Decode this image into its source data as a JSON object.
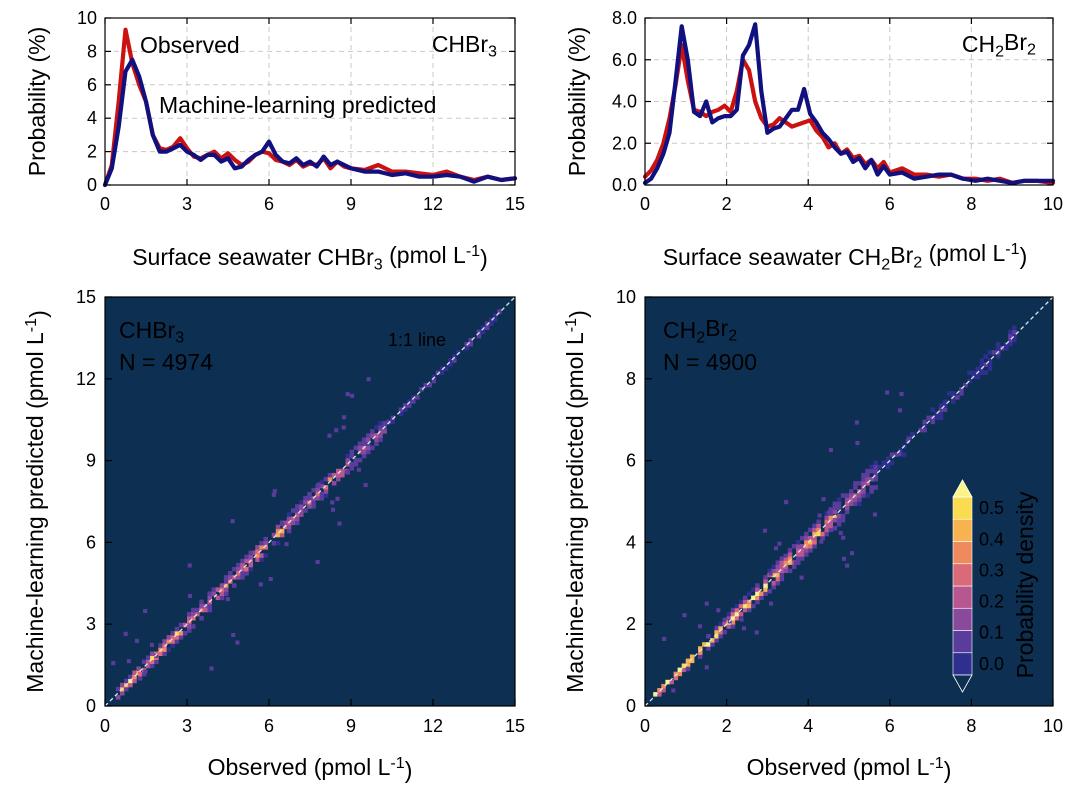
{
  "chart_data": [
    {
      "type": "line",
      "title": "CHBr",
      "title_subscript": "3",
      "xlabel_parts": [
        "Surface seawater CHBr",
        "3",
        " (pmol L",
        "-1",
        ")"
      ],
      "ylabel": "Probability (%)",
      "xlim": [
        0,
        15
      ],
      "ylim": [
        0,
        10
      ],
      "xticks": [
        0,
        3,
        6,
        9,
        12,
        15
      ],
      "yticks": [
        0,
        2,
        4,
        6,
        8,
        10
      ],
      "ytick_labels": [
        "0",
        "2",
        "4",
        "6",
        "8",
        "10"
      ],
      "grid": true,
      "series": [
        {
          "name": "Observed",
          "color": "#cc1111",
          "x": [
            0,
            0.25,
            0.5,
            0.75,
            1.0,
            1.25,
            1.5,
            1.75,
            2.0,
            2.25,
            2.5,
            2.75,
            3.0,
            3.25,
            3.5,
            3.75,
            4.0,
            4.25,
            4.5,
            4.75,
            5.0,
            5.25,
            5.5,
            5.75,
            6.0,
            6.25,
            6.5,
            6.75,
            7.0,
            7.25,
            7.5,
            7.75,
            8.0,
            8.25,
            8.5,
            8.75,
            9.0,
            9.5,
            10.0,
            10.5,
            11.0,
            11.5,
            12.0,
            12.5,
            13.0,
            13.5,
            14.0,
            14.5,
            15.0
          ],
          "y": [
            0,
            1.2,
            5.0,
            9.3,
            7.3,
            6.0,
            5.0,
            3.0,
            2.2,
            2.1,
            2.3,
            2.8,
            2.2,
            1.7,
            1.6,
            1.8,
            2.0,
            1.6,
            1.9,
            1.5,
            1.2,
            1.4,
            1.8,
            2.0,
            1.9,
            1.5,
            1.4,
            1.2,
            1.5,
            1.1,
            1.3,
            1.2,
            1.6,
            1.0,
            1.4,
            1.1,
            1.0,
            0.9,
            1.2,
            0.8,
            0.8,
            0.7,
            0.6,
            0.8,
            0.5,
            0.3,
            0.5,
            0.3,
            0.4
          ]
        },
        {
          "name": "Machine-learning predicted",
          "color": "#10107f",
          "x": [
            0,
            0.25,
            0.5,
            0.75,
            1.0,
            1.25,
            1.5,
            1.75,
            2.0,
            2.25,
            2.5,
            2.75,
            3.0,
            3.25,
            3.5,
            3.75,
            4.0,
            4.25,
            4.5,
            4.75,
            5.0,
            5.25,
            5.5,
            5.75,
            6.0,
            6.25,
            6.5,
            6.75,
            7.0,
            7.25,
            7.5,
            7.75,
            8.0,
            8.25,
            8.5,
            8.75,
            9.0,
            9.5,
            10.0,
            10.5,
            11.0,
            11.5,
            12.0,
            12.5,
            13.0,
            13.5,
            14.0,
            14.5,
            15.0
          ],
          "y": [
            0,
            1.0,
            3.5,
            6.8,
            7.5,
            6.5,
            5.0,
            3.0,
            2.0,
            2.0,
            2.2,
            2.4,
            2.0,
            1.8,
            1.5,
            1.8,
            1.8,
            1.4,
            1.6,
            1.0,
            1.1,
            1.5,
            1.8,
            2.0,
            2.6,
            1.8,
            1.4,
            1.3,
            1.6,
            1.2,
            1.4,
            1.1,
            1.7,
            1.2,
            1.4,
            1.2,
            1.0,
            0.8,
            0.8,
            0.6,
            0.7,
            0.5,
            0.5,
            0.6,
            0.5,
            0.2,
            0.5,
            0.3,
            0.4
          ]
        }
      ]
    },
    {
      "type": "line",
      "title": "CH",
      "title_parts": [
        "CH",
        "2",
        "Br",
        "2"
      ],
      "xlabel_parts": [
        "Surface seawater CH",
        "2",
        "Br",
        "2",
        " (pmol L",
        "-1",
        ")"
      ],
      "ylabel": "Probability (%)",
      "xlim": [
        0,
        10
      ],
      "ylim": [
        0,
        8
      ],
      "xticks": [
        0,
        2,
        4,
        6,
        8,
        10
      ],
      "yticks": [
        0,
        2,
        4,
        6,
        8
      ],
      "ytick_labels": [
        "0.0",
        "2.0",
        "4.0",
        "6.0",
        "8.0"
      ],
      "grid": true,
      "series": [
        {
          "name": "Observed",
          "color": "#cc1111",
          "x": [
            0,
            0.15,
            0.3,
            0.45,
            0.6,
            0.75,
            0.9,
            1.05,
            1.2,
            1.35,
            1.5,
            1.65,
            1.8,
            1.95,
            2.1,
            2.25,
            2.4,
            2.55,
            2.7,
            2.85,
            3.0,
            3.15,
            3.3,
            3.45,
            3.6,
            3.75,
            3.9,
            4.05,
            4.2,
            4.35,
            4.5,
            4.65,
            4.8,
            4.95,
            5.1,
            5.25,
            5.4,
            5.55,
            5.7,
            5.85,
            6.0,
            6.3,
            6.6,
            6.9,
            7.2,
            7.5,
            7.8,
            8.1,
            8.4,
            8.7,
            9.0,
            9.3,
            9.6,
            10.0
          ],
          "y": [
            0.4,
            0.7,
            1.2,
            2.0,
            3.2,
            4.8,
            6.7,
            5.0,
            3.6,
            3.5,
            3.3,
            3.5,
            3.6,
            3.8,
            3.5,
            4.5,
            6.0,
            5.5,
            4.0,
            3.2,
            2.8,
            2.9,
            3.2,
            3.0,
            2.8,
            2.9,
            3.0,
            3.1,
            2.6,
            2.3,
            1.8,
            2.0,
            1.5,
            1.7,
            1.3,
            1.4,
            1.0,
            1.2,
            0.8,
            1.1,
            0.6,
            0.8,
            0.5,
            0.5,
            0.4,
            0.5,
            0.3,
            0.3,
            0.2,
            0.3,
            0.1,
            0.2,
            0.2,
            0.1
          ]
        },
        {
          "name": "Machine-learning predicted",
          "color": "#10107f",
          "x": [
            0,
            0.15,
            0.3,
            0.45,
            0.6,
            0.75,
            0.9,
            1.05,
            1.2,
            1.35,
            1.5,
            1.65,
            1.8,
            1.95,
            2.1,
            2.25,
            2.4,
            2.55,
            2.7,
            2.85,
            3.0,
            3.15,
            3.3,
            3.45,
            3.6,
            3.75,
            3.9,
            4.05,
            4.2,
            4.35,
            4.5,
            4.65,
            4.8,
            4.95,
            5.1,
            5.25,
            5.4,
            5.55,
            5.7,
            5.85,
            6.0,
            6.3,
            6.6,
            6.9,
            7.2,
            7.5,
            7.8,
            8.1,
            8.4,
            8.7,
            9.0,
            9.3,
            9.6,
            10.0
          ],
          "y": [
            0.1,
            0.3,
            0.8,
            1.5,
            2.5,
            5.0,
            7.6,
            6.0,
            3.5,
            3.3,
            4.0,
            3.0,
            3.2,
            3.3,
            3.3,
            3.6,
            6.2,
            6.7,
            7.7,
            4.5,
            2.5,
            2.7,
            2.8,
            3.2,
            3.6,
            3.6,
            4.6,
            3.4,
            3.0,
            2.5,
            2.2,
            1.8,
            1.5,
            1.6,
            1.1,
            1.3,
            0.8,
            1.2,
            0.5,
            0.9,
            0.5,
            0.6,
            0.3,
            0.4,
            0.5,
            0.5,
            0.3,
            0.2,
            0.3,
            0.2,
            0.1,
            0.2,
            0.2,
            0.2
          ]
        }
      ]
    },
    {
      "type": "heatmap",
      "title_parts": [
        "CHBr",
        "3"
      ],
      "n_label": "N = 4974",
      "line_label": "1:1 line",
      "xlabel_parts": [
        "Observed (pmol L",
        "-1",
        ")"
      ],
      "ylabel_parts": [
        "Machine-learning predicted (pmol L",
        "-1",
        ")"
      ],
      "xlim": [
        0,
        15
      ],
      "ylim": [
        0,
        15
      ],
      "xticks": [
        0,
        3,
        6,
        9,
        12,
        15
      ],
      "yticks": [
        0,
        3,
        6,
        9,
        12,
        15
      ],
      "background_color": "#0c2f52",
      "bin_size": 0.15,
      "clusters": [
        {
          "start": 0.4,
          "end": 1.2,
          "peak": 0.5,
          "spread": 0.15
        },
        {
          "start": 1.2,
          "end": 3.0,
          "peak": 0.35,
          "spread": 0.2
        },
        {
          "start": 3.0,
          "end": 5.5,
          "peak": 0.22,
          "spread": 0.3
        },
        {
          "start": 5.5,
          "end": 6.5,
          "peak": 0.3,
          "spread": 0.25
        },
        {
          "start": 6.5,
          "end": 8.0,
          "peak": 0.16,
          "spread": 0.3
        },
        {
          "start": 8.0,
          "end": 8.8,
          "peak": 0.3,
          "spread": 0.25
        },
        {
          "start": 8.8,
          "end": 10.3,
          "peak": 0.14,
          "spread": 0.3
        },
        {
          "start": 10.3,
          "end": 14.5,
          "peak": 0.04,
          "spread": 0.2
        }
      ]
    },
    {
      "type": "heatmap",
      "title_parts": [
        "CH",
        "2",
        "Br",
        "2"
      ],
      "n_label": "N = 4900",
      "xlabel_parts": [
        "Observed (pmol L",
        "-1",
        ")"
      ],
      "ylabel_parts": [
        "Machine-learning predicted (pmol L",
        "-1",
        ")"
      ],
      "xlim": [
        0,
        10
      ],
      "ylim": [
        0,
        10
      ],
      "xticks": [
        0,
        2,
        4,
        6,
        8,
        10
      ],
      "yticks": [
        0,
        2,
        4,
        6,
        8,
        10
      ],
      "background_color": "#0c2f52",
      "bin_size": 0.1,
      "clusters": [
        {
          "start": 0.2,
          "end": 1.0,
          "peak": 0.55,
          "spread": 0.08
        },
        {
          "start": 1.0,
          "end": 2.0,
          "peak": 0.45,
          "spread": 0.12
        },
        {
          "start": 2.0,
          "end": 3.0,
          "peak": 0.5,
          "spread": 0.15
        },
        {
          "start": 3.0,
          "end": 4.0,
          "peak": 0.28,
          "spread": 0.22
        },
        {
          "start": 4.0,
          "end": 4.6,
          "peak": 0.32,
          "spread": 0.22
        },
        {
          "start": 4.6,
          "end": 5.6,
          "peak": 0.12,
          "spread": 0.3
        },
        {
          "start": 5.6,
          "end": 9.0,
          "peak": 0.03,
          "spread": 0.3
        }
      ],
      "colorbar": {
        "label": "Probability density",
        "ticks": [
          "0.0",
          "0.1",
          "0.2",
          "0.3",
          "0.4",
          "0.5"
        ],
        "tick_values": [
          0,
          0.1,
          0.2,
          0.3,
          0.4,
          0.5
        ],
        "colors": [
          "#0c2f52",
          "#2e2f8f",
          "#5a3c9c",
          "#8a4a9c",
          "#b8578f",
          "#db6a78",
          "#ef8a5e",
          "#f7b34f",
          "#fadc4f",
          "#fbf38a"
        ]
      }
    }
  ]
}
